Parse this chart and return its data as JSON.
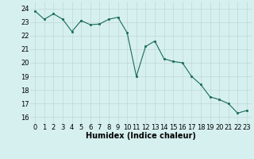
{
  "x": [
    0,
    1,
    2,
    3,
    4,
    5,
    6,
    7,
    8,
    9,
    10,
    11,
    12,
    13,
    14,
    15,
    16,
    17,
    18,
    19,
    20,
    21,
    22,
    23
  ],
  "y": [
    23.8,
    23.2,
    23.6,
    23.2,
    22.3,
    23.1,
    22.8,
    22.85,
    23.2,
    23.35,
    22.2,
    19.0,
    21.2,
    21.6,
    20.3,
    20.1,
    20.0,
    19.0,
    18.4,
    17.5,
    17.3,
    17.0,
    16.3,
    16.5
  ],
  "line_color": "#1a6b5a",
  "marker": "s",
  "marker_size": 2,
  "bg_color": "#d6f0ef",
  "grid_color": "#c0d8d4",
  "xlabel": "Humidex (Indice chaleur)",
  "xlim": [
    -0.5,
    23.5
  ],
  "ylim": [
    15.5,
    24.5
  ],
  "yticks": [
    16,
    17,
    18,
    19,
    20,
    21,
    22,
    23,
    24
  ],
  "xticks": [
    0,
    1,
    2,
    3,
    4,
    5,
    6,
    7,
    8,
    9,
    10,
    11,
    12,
    13,
    14,
    15,
    16,
    17,
    18,
    19,
    20,
    21,
    22,
    23
  ],
  "tick_fontsize": 6,
  "xlabel_fontsize": 7
}
